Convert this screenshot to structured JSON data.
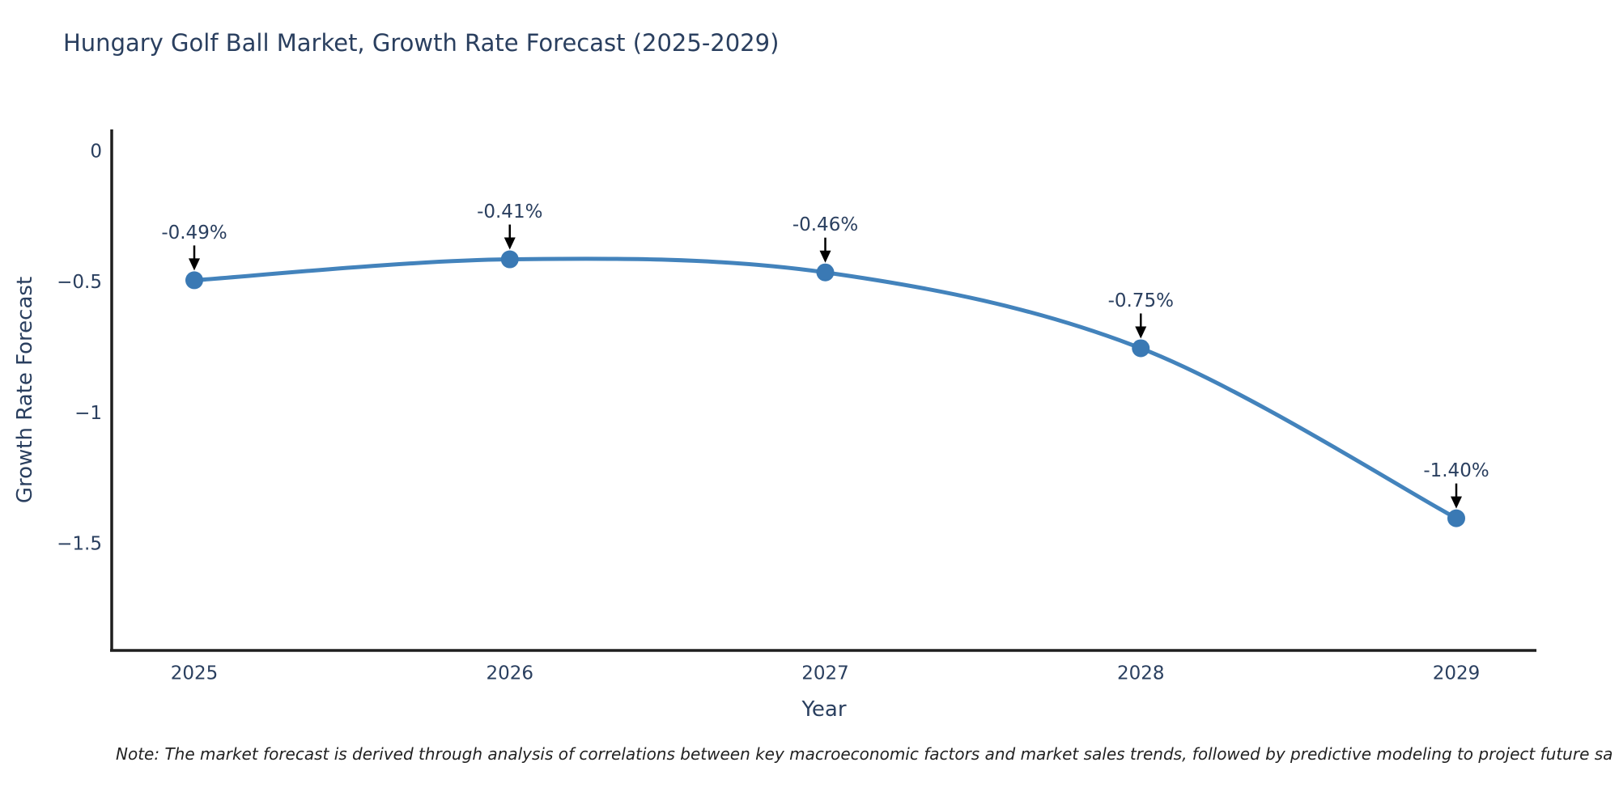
{
  "chart_data": {
    "type": "line",
    "title": "Hungary Golf Ball Market, Growth Rate Forecast (2025-2029)",
    "xlabel": "Year",
    "ylabel": "Growth Rate Forecast",
    "categories": [
      "2025",
      "2026",
      "2027",
      "2028",
      "2029"
    ],
    "values": [
      -0.49,
      -0.41,
      -0.46,
      -0.75,
      -1.4
    ],
    "annotations": [
      "-0.49%",
      "-0.41%",
      "-0.46%",
      "-0.75%",
      "-1.40%"
    ],
    "yticks": [
      {
        "label": "0",
        "value": 0
      },
      {
        "label": "−0.5",
        "value": -0.5
      },
      {
        "label": "−1",
        "value": -1
      },
      {
        "label": "−1.5",
        "value": -1.5
      }
    ],
    "ylim": [
      -1.9,
      0.09
    ],
    "grid": "off",
    "legend": "none",
    "line_color": "#4383bc",
    "marker_color": "#3a79b4",
    "axis_color": "#1f1f1f",
    "text_color": "#2a3f5f",
    "annotation_arrow_color": "#000000"
  },
  "note": {
    "text": "Note: The market forecast is derived through analysis of correlations between key macroeconomic factors and market sales trends, followed by predictive modeling to project future sa"
  }
}
